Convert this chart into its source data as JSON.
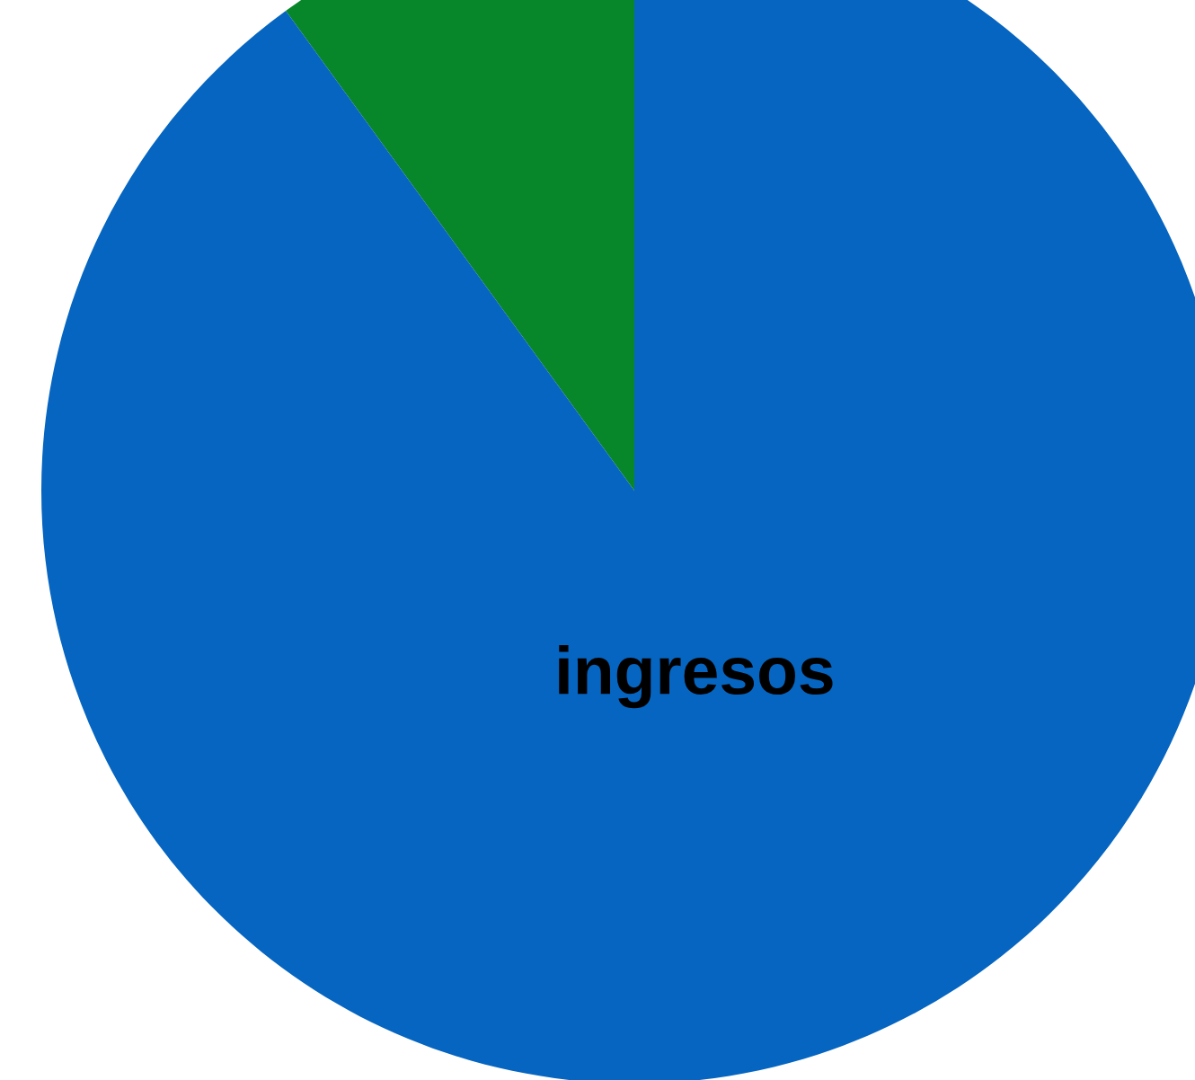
{
  "chart_data": {
    "type": "pie",
    "categories": [
      null,
      "ingresos"
    ],
    "values": [
      10,
      90
    ],
    "colors": [
      "#07862a",
      "#0565c0"
    ]
  }
}
